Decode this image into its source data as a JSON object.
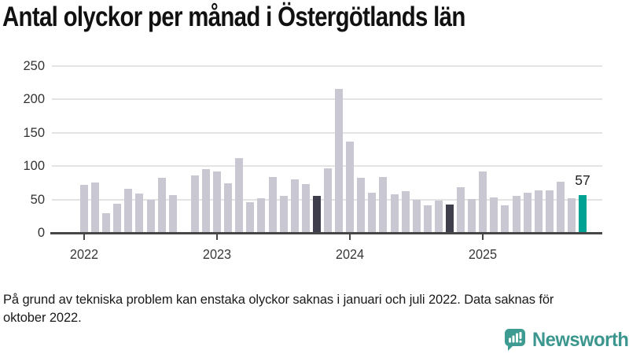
{
  "title": "Antal olyckor per månad i Östergötlands län",
  "footnote": "På grund av tekniska problem kan enstaka olyckor saknas i januari och juli 2022. Data saknas för oktober 2022.",
  "branding": {
    "wordmark": "Newsworthy",
    "icon": "bar-chart-speech-bubble-icon"
  },
  "colors": {
    "bar_default": "#c9c7d1",
    "bar_dark": "#3f3e4d",
    "bar_accent": "#00a294",
    "gridline": "#e4e4e4",
    "axis": "#474747",
    "ytick_label": "#333333",
    "xtick_label": "#3a3a3a",
    "title_text": "#111111",
    "footnote_text": "#1a1a1a",
    "brand_teal": "#3b968e",
    "brand_icon_teal": "#3d9b91"
  },
  "chart_data": {
    "type": "bar",
    "title": "Antal olyckor per månad i Östergötlands län",
    "xlabel": "",
    "ylabel": "",
    "ylim": [
      0,
      250
    ],
    "yticks": [
      0,
      50,
      100,
      150,
      200,
      250
    ],
    "grid": true,
    "legend": false,
    "x_tick_labels": [
      "2022",
      "2023",
      "2024",
      "2025"
    ],
    "months": [
      "2022-01",
      "2022-02",
      "2022-03",
      "2022-04",
      "2022-05",
      "2022-06",
      "2022-07",
      "2022-08",
      "2022-09",
      "2022-10",
      "2022-11",
      "2022-12",
      "2023-01",
      "2023-02",
      "2023-03",
      "2023-04",
      "2023-05",
      "2023-06",
      "2023-07",
      "2023-08",
      "2023-09",
      "2023-10",
      "2023-11",
      "2023-12",
      "2024-01",
      "2024-02",
      "2024-03",
      "2024-04",
      "2024-05",
      "2024-06",
      "2024-07",
      "2024-08",
      "2024-09",
      "2024-10",
      "2024-11",
      "2024-12",
      "2025-01",
      "2025-02",
      "2025-03",
      "2025-04",
      "2025-05",
      "2025-06",
      "2025-07",
      "2025-08",
      "2025-09",
      "2025-10"
    ],
    "values": [
      72,
      76,
      29,
      44,
      66,
      59,
      50,
      83,
      57,
      null,
      86,
      95,
      92,
      74,
      112,
      46,
      52,
      84,
      56,
      80,
      73,
      55,
      97,
      216,
      137,
      83,
      60,
      84,
      58,
      62,
      50,
      41,
      48,
      42,
      69,
      51,
      92,
      53,
      41,
      56,
      60,
      64,
      64,
      77,
      52,
      57
    ],
    "missing_months": [
      "2022-10"
    ],
    "dark_highlight_months": [
      "2023-10",
      "2024-10"
    ],
    "accent_month": "2025-10",
    "last_value_label": "57"
  }
}
